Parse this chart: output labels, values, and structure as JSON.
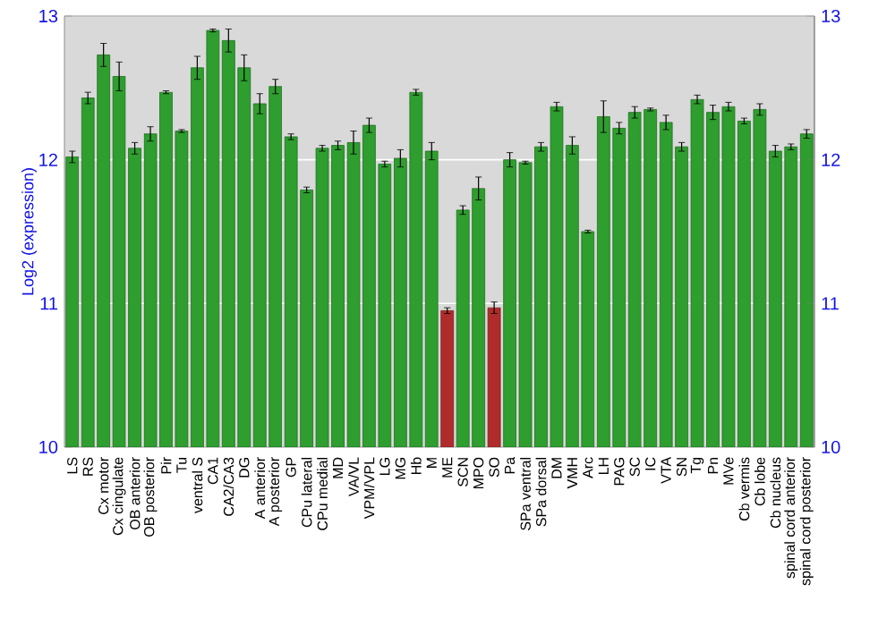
{
  "chart_data": {
    "type": "bar",
    "ylabel": "Log2 (expression)",
    "categories": [
      "LS",
      "RS",
      "Cx motor",
      "Cx cingulate",
      "OB anterior",
      "OB posterior",
      "Pir",
      "Tu",
      "ventral S",
      "CA1",
      "CA2/CA3",
      "DG",
      "A anterior",
      "A posterior",
      "GP",
      "CPu lateral",
      "CPu medial",
      "MD",
      "VA/VL",
      "VPM/VPL",
      "LG",
      "MG",
      "Hb",
      "M",
      "ME",
      "SCN",
      "MPO",
      "SO",
      "Pa",
      "SPa ventral",
      "SPa dorsal",
      "DM",
      "VMH",
      "Arc",
      "LH",
      "PAG",
      "SC",
      "IC",
      "VTA",
      "SN",
      "Tg",
      "Pn",
      "MVe",
      "Cb vermis",
      "Cb lobe",
      "Cb nucleus",
      "spinal cord anterior",
      "spinal cord posterior"
    ],
    "values": [
      12.02,
      12.43,
      12.73,
      12.58,
      12.08,
      12.18,
      12.47,
      12.2,
      12.64,
      12.9,
      12.83,
      12.64,
      12.39,
      12.51,
      12.16,
      11.79,
      12.08,
      12.1,
      12.12,
      12.24,
      11.97,
      12.01,
      12.47,
      12.06,
      10.95,
      11.65,
      11.8,
      10.97,
      12.0,
      11.98,
      12.09,
      12.37,
      12.1,
      11.5,
      12.3,
      12.22,
      12.33,
      12.35,
      12.26,
      12.09,
      12.42,
      12.33,
      12.37,
      12.27,
      12.35,
      12.06,
      12.09,
      12.18
    ],
    "errors": [
      0.04,
      0.04,
      0.08,
      0.1,
      0.04,
      0.05,
      0.01,
      0.01,
      0.08,
      0.01,
      0.08,
      0.09,
      0.07,
      0.05,
      0.02,
      0.02,
      0.02,
      0.03,
      0.08,
      0.05,
      0.02,
      0.06,
      0.02,
      0.06,
      0.02,
      0.03,
      0.08,
      0.04,
      0.05,
      0.01,
      0.03,
      0.03,
      0.06,
      0.01,
      0.11,
      0.04,
      0.04,
      0.01,
      0.05,
      0.03,
      0.03,
      0.05,
      0.03,
      0.02,
      0.04,
      0.04,
      0.02,
      0.03
    ],
    "colors": [
      "#2e9e2e",
      "#2e9e2e",
      "#2e9e2e",
      "#2e9e2e",
      "#2e9e2e",
      "#2e9e2e",
      "#2e9e2e",
      "#2e9e2e",
      "#2e9e2e",
      "#2e9e2e",
      "#2e9e2e",
      "#2e9e2e",
      "#2e9e2e",
      "#2e9e2e",
      "#2e9e2e",
      "#2e9e2e",
      "#2e9e2e",
      "#2e9e2e",
      "#2e9e2e",
      "#2e9e2e",
      "#2e9e2e",
      "#2e9e2e",
      "#2e9e2e",
      "#2e9e2e",
      "#b02c2c",
      "#2e9e2e",
      "#2e9e2e",
      "#b02c2c",
      "#2e9e2e",
      "#2e9e2e",
      "#2e9e2e",
      "#2e9e2e",
      "#2e9e2e",
      "#2e9e2e",
      "#2e9e2e",
      "#2e9e2e",
      "#2e9e2e",
      "#2e9e2e",
      "#2e9e2e",
      "#2e9e2e",
      "#2e9e2e",
      "#2e9e2e",
      "#2e9e2e",
      "#2e9e2e",
      "#2e9e2e",
      "#2e9e2e",
      "#2e9e2e",
      "#2e9e2e"
    ],
    "ylim": [
      10,
      13
    ],
    "yticks": [
      10,
      11,
      12,
      13
    ],
    "y2lim": [
      10,
      13
    ],
    "y2ticks": [
      10,
      11,
      12,
      13
    ],
    "grid": "y"
  }
}
